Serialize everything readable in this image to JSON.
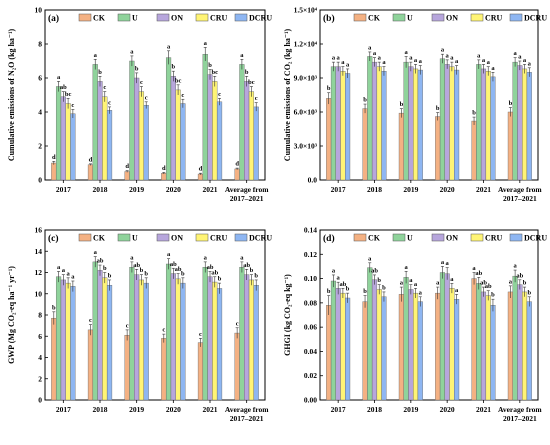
{
  "colors": {
    "CK": "#f4b183",
    "U": "#8fd39b",
    "ON": "#b7a6dc",
    "CRU": "#fff475",
    "DCRU": "#8eb6f2"
  },
  "chart_data": [
    {
      "type": "bar",
      "panel_label": "(a)",
      "ylabel": "Cumulative emissions of N₂O (kg ha⁻¹)",
      "ylim": [
        0,
        10
      ],
      "yticks": [
        "0",
        "2",
        "4",
        "6",
        "8",
        "10"
      ],
      "ytick_values": [
        0,
        2,
        4,
        6,
        8,
        10
      ],
      "categories": [
        "2017",
        "2018",
        "2019",
        "2020",
        "2021",
        "Average from 2017–2021"
      ],
      "legend": "top",
      "series": [
        {
          "name": "CK",
          "values": [
            1.0,
            0.9,
            0.5,
            0.4,
            0.35,
            0.65
          ],
          "errors": [
            0.1,
            0.05,
            0.05,
            0.05,
            0.05,
            0.05
          ],
          "sig": [
            "d",
            "d",
            "d",
            "d",
            "d",
            "d"
          ]
        },
        {
          "name": "U",
          "values": [
            5.5,
            6.8,
            7.0,
            7.2,
            7.4,
            6.8
          ],
          "errors": [
            0.3,
            0.3,
            0.3,
            0.4,
            0.4,
            0.3
          ],
          "sig": [
            "a",
            "a",
            "a",
            "a",
            "a",
            "a"
          ]
        },
        {
          "name": "ON",
          "values": [
            4.9,
            5.8,
            6.0,
            6.1,
            6.2,
            5.8
          ],
          "errors": [
            0.3,
            0.3,
            0.3,
            0.3,
            0.3,
            0.3
          ],
          "sig": [
            "ab",
            "b",
            "b",
            "b",
            "b",
            "b"
          ]
        },
        {
          "name": "CRU",
          "values": [
            4.5,
            4.9,
            5.2,
            5.3,
            5.8,
            5.2
          ],
          "errors": [
            0.3,
            0.3,
            0.3,
            0.3,
            0.3,
            0.3
          ],
          "sig": [
            "bc",
            "c",
            "c",
            "bc",
            "bc",
            "bc"
          ]
        },
        {
          "name": "DCRU",
          "values": [
            3.9,
            4.1,
            4.4,
            4.5,
            4.6,
            4.3
          ],
          "errors": [
            0.25,
            0.2,
            0.2,
            0.25,
            0.2,
            0.25
          ],
          "sig": [
            "c",
            "c",
            "c",
            "c",
            "c",
            "c"
          ]
        }
      ]
    },
    {
      "type": "bar",
      "panel_label": "(b)",
      "ylabel": "Cumulative emissions of CO₂ (kg ha⁻¹)",
      "ylim": [
        0,
        15000
      ],
      "yticks": [
        "0.0",
        "3.0×10³",
        "6.0×10³",
        "9.0×10³",
        "1.2×10⁴",
        "1.5×10⁴"
      ],
      "ytick_values": [
        0,
        3000,
        6000,
        9000,
        12000,
        15000
      ],
      "categories": [
        "2017",
        "2018",
        "2019",
        "2020",
        "2021",
        "Average from 2017–2021"
      ],
      "legend": "top",
      "series": [
        {
          "name": "CK",
          "values": [
            7200,
            6300,
            5900,
            5600,
            5200,
            6000
          ],
          "errors": [
            500,
            400,
            400,
            350,
            350,
            400
          ],
          "sig": [
            "b",
            "b",
            "b",
            "b",
            "b",
            "b"
          ]
        },
        {
          "name": "U",
          "values": [
            10000,
            10900,
            10400,
            10700,
            10200,
            10400
          ],
          "errors": [
            400,
            400,
            500,
            400,
            400,
            400
          ],
          "sig": [
            "a",
            "a",
            "a",
            "a",
            "a",
            "a"
          ]
        },
        {
          "name": "ON",
          "values": [
            10000,
            10400,
            10000,
            10200,
            9800,
            10100
          ],
          "errors": [
            400,
            400,
            400,
            400,
            400,
            400
          ],
          "sig": [
            "a",
            "a",
            "a",
            "a",
            "a",
            "a"
          ]
        },
        {
          "name": "CRU",
          "values": [
            9600,
            10000,
            9800,
            10000,
            9600,
            9800
          ],
          "errors": [
            400,
            400,
            400,
            400,
            400,
            400
          ],
          "sig": [
            "a",
            "a",
            "a",
            "a",
            "a",
            "a"
          ]
        },
        {
          "name": "DCRU",
          "values": [
            9400,
            9600,
            9700,
            9700,
            9100,
            9500
          ],
          "errors": [
            400,
            400,
            400,
            400,
            400,
            400
          ],
          "sig": [
            "a",
            "a",
            "a",
            "a",
            "a",
            "a"
          ]
        }
      ]
    },
    {
      "type": "bar",
      "panel_label": "(c)",
      "ylabel": "GWP (Mg CO₂-eq ha⁻¹ yr⁻¹)",
      "ylim": [
        0,
        16
      ],
      "yticks": [
        "0",
        "2",
        "4",
        "6",
        "8",
        "10",
        "12",
        "14",
        "16"
      ],
      "ytick_values": [
        0,
        2,
        4,
        6,
        8,
        10,
        12,
        14,
        16
      ],
      "categories": [
        "2017",
        "2018",
        "2019",
        "2020",
        "2021",
        "Average from 2017–2021"
      ],
      "legend": "top",
      "series": [
        {
          "name": "CK",
          "values": [
            7.7,
            6.6,
            6.1,
            5.8,
            5.4,
            6.3
          ],
          "errors": [
            0.6,
            0.5,
            0.5,
            0.4,
            0.4,
            0.5
          ],
          "sig": [
            "b",
            "c",
            "c",
            "c",
            "c",
            "c"
          ]
        },
        {
          "name": "U",
          "values": [
            11.6,
            13.0,
            12.5,
            12.8,
            12.5,
            12.5
          ],
          "errors": [
            0.5,
            0.5,
            0.5,
            0.5,
            0.5,
            0.5
          ],
          "sig": [
            "a",
            "a",
            "a",
            "a",
            "a",
            "a"
          ]
        },
        {
          "name": "ON",
          "values": [
            11.3,
            12.2,
            11.8,
            11.9,
            11.6,
            11.8
          ],
          "errors": [
            0.5,
            0.5,
            0.5,
            0.5,
            0.5,
            0.5
          ],
          "sig": [
            "a",
            "ab",
            "ab",
            "ab",
            "ab",
            "ab"
          ]
        },
        {
          "name": "CRU",
          "values": [
            11.0,
            11.5,
            11.3,
            11.4,
            11.1,
            11.3
          ],
          "errors": [
            0.5,
            0.5,
            0.5,
            0.5,
            0.5,
            0.5
          ],
          "sig": [
            "a",
            "b",
            "b",
            "ab",
            "ab",
            "b"
          ]
        },
        {
          "name": "DCRU",
          "values": [
            10.7,
            10.8,
            11.0,
            11.0,
            10.5,
            10.8
          ],
          "errors": [
            0.5,
            0.5,
            0.5,
            0.5,
            0.5,
            0.5
          ],
          "sig": [
            "a",
            "b",
            "b",
            "b",
            "b",
            "b"
          ]
        }
      ]
    },
    {
      "type": "bar",
      "panel_label": "(d)",
      "ylabel": "GHGI (kg CO₂-eq kg⁻¹)",
      "ylim": [
        0,
        0.14
      ],
      "yticks": [
        "0.00",
        "0.02",
        "0.04",
        "0.06",
        "0.08",
        "0.10",
        "0.12",
        "0.14"
      ],
      "ytick_values": [
        0,
        0.02,
        0.04,
        0.06,
        0.08,
        0.1,
        0.12,
        0.14
      ],
      "categories": [
        "2017",
        "2018",
        "2019",
        "2020",
        "2021",
        "Average from 2017–2021"
      ],
      "legend": "top",
      "series": [
        {
          "name": "CK",
          "values": [
            0.078,
            0.081,
            0.087,
            0.088,
            0.1,
            0.089
          ],
          "errors": [
            0.008,
            0.005,
            0.006,
            0.005,
            0.005,
            0.005
          ],
          "sig": [
            "b",
            "b",
            "a",
            "a",
            "a",
            "a"
          ]
        },
        {
          "name": "U",
          "values": [
            0.098,
            0.109,
            0.101,
            0.105,
            0.096,
            0.102
          ],
          "errors": [
            0.005,
            0.004,
            0.005,
            0.005,
            0.005,
            0.005
          ],
          "sig": [
            "a",
            "a",
            "a",
            "a",
            "ab",
            "a"
          ]
        },
        {
          "name": "ON",
          "values": [
            0.092,
            0.099,
            0.091,
            0.104,
            0.089,
            0.095
          ],
          "errors": [
            0.005,
            0.004,
            0.004,
            0.005,
            0.004,
            0.004
          ],
          "sig": [
            "a",
            "ab",
            "a",
            "a",
            "ab",
            "ab"
          ]
        },
        {
          "name": "CRU",
          "values": [
            0.088,
            0.091,
            0.088,
            0.092,
            0.086,
            0.089
          ],
          "errors": [
            0.004,
            0.004,
            0.004,
            0.004,
            0.004,
            0.004
          ],
          "sig": [
            "ab",
            "b",
            "a",
            "a",
            "ab",
            "b"
          ]
        },
        {
          "name": "DCRU",
          "values": [
            0.084,
            0.085,
            0.081,
            0.083,
            0.078,
            0.081
          ],
          "errors": [
            0.004,
            0.004,
            0.004,
            0.004,
            0.005,
            0.004
          ],
          "sig": [
            "b",
            "b",
            "a",
            "a",
            "b",
            "b"
          ]
        }
      ]
    }
  ]
}
